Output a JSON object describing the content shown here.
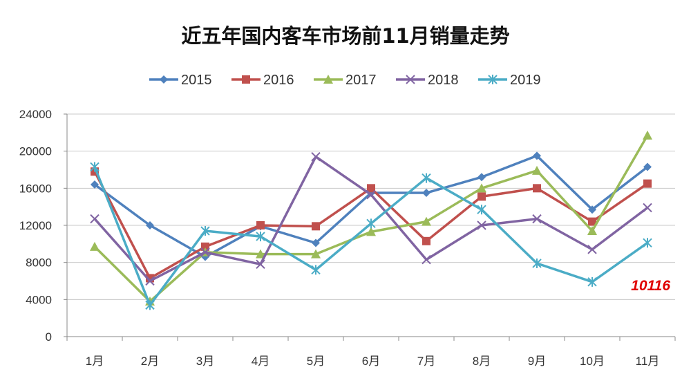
{
  "chart_data": {
    "type": "line",
    "title": "近五年国内客车市场前11月销量走势",
    "xlabel": "",
    "ylabel": "",
    "categories": [
      "1月",
      "2月",
      "3月",
      "4月",
      "5月",
      "6月",
      "7月",
      "8月",
      "9月",
      "10月",
      "11月"
    ],
    "ylim": [
      0,
      24000
    ],
    "yticks": [
      0,
      4000,
      8000,
      12000,
      16000,
      20000,
      24000
    ],
    "grid": true,
    "legend_position": "top",
    "series": [
      {
        "name": "2015",
        "color": "#4f81bd",
        "marker": "diamond",
        "values": [
          16400,
          12000,
          8600,
          11900,
          10100,
          15500,
          15500,
          17200,
          19500,
          13700,
          18300
        ]
      },
      {
        "name": "2016",
        "color": "#c0504d",
        "marker": "square",
        "values": [
          17800,
          6300,
          9700,
          12000,
          11900,
          16000,
          10300,
          15100,
          16000,
          12400,
          16500
        ]
      },
      {
        "name": "2017",
        "color": "#9bbb59",
        "marker": "triangle",
        "values": [
          9700,
          3800,
          9100,
          8900,
          8900,
          11300,
          12400,
          16000,
          17900,
          11400,
          21700
        ]
      },
      {
        "name": "2018",
        "color": "#8064a2",
        "marker": "x",
        "values": [
          12700,
          6000,
          9100,
          7800,
          19400,
          15300,
          8300,
          12000,
          12700,
          9400,
          13900
        ]
      },
      {
        "name": "2019",
        "color": "#4bacc6",
        "marker": "star",
        "values": [
          18300,
          3400,
          11400,
          10800,
          7200,
          12200,
          17100,
          13700,
          7900,
          5900,
          10116
        ]
      }
    ],
    "annotations": [
      {
        "text": "10116",
        "series": "2019",
        "category": "11月"
      }
    ]
  }
}
